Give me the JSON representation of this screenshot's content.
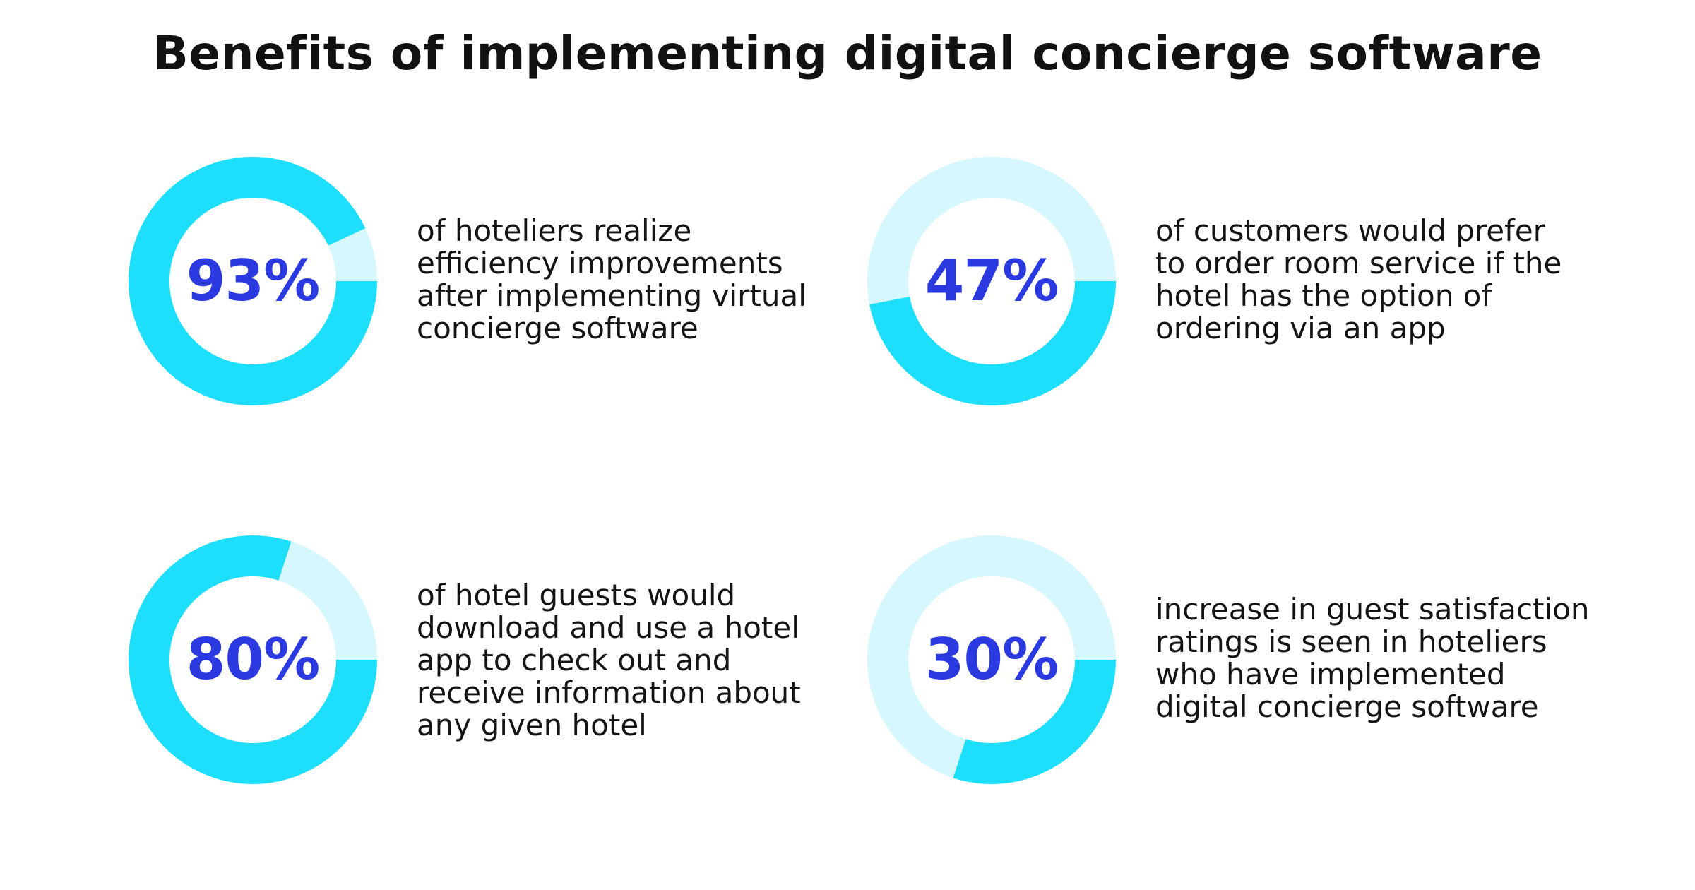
{
  "title": "Benefits of implementing digital concierge software",
  "colors": {
    "filled": "#1ddffc",
    "remainder": "#d5f7fd",
    "value_text": "#2a3ae0",
    "text": "#111111"
  },
  "chart_data": {
    "type": "pie",
    "style": "donut",
    "title": "Benefits of implementing digital concierge software",
    "items": [
      {
        "value": 93,
        "label": "93%",
        "description": "of hoteliers realize efficiency improvements after implementing virtual concierge software",
        "lines": [
          "of hoteliers realize",
          "efficiency improvements",
          "after implementing virtual",
          "concierge software"
        ]
      },
      {
        "value": 47,
        "label": "47%",
        "description": "of customers would prefer to order room service if the hotel has the option of ordering via an app",
        "lines": [
          "of customers would prefer",
          "to order room service if the",
          "hotel has the option of",
          "ordering via an app"
        ]
      },
      {
        "value": 80,
        "label": "80%",
        "description": "of hotel guests would download and use a hotel app to check out and receive information about any given hotel",
        "lines": [
          "of hotel guests would",
          "download and use a hotel",
          "app to check out and",
          "receive information about",
          "any given hotel"
        ]
      },
      {
        "value": 30,
        "label": "30%",
        "description": "increase in guest satisfaction ratings is seen in hoteliers who have implemented digital concierge software",
        "lines": [
          "increase in guest satisfaction",
          "ratings is seen in hoteliers",
          "who have implemented",
          "digital concierge software"
        ]
      }
    ]
  }
}
